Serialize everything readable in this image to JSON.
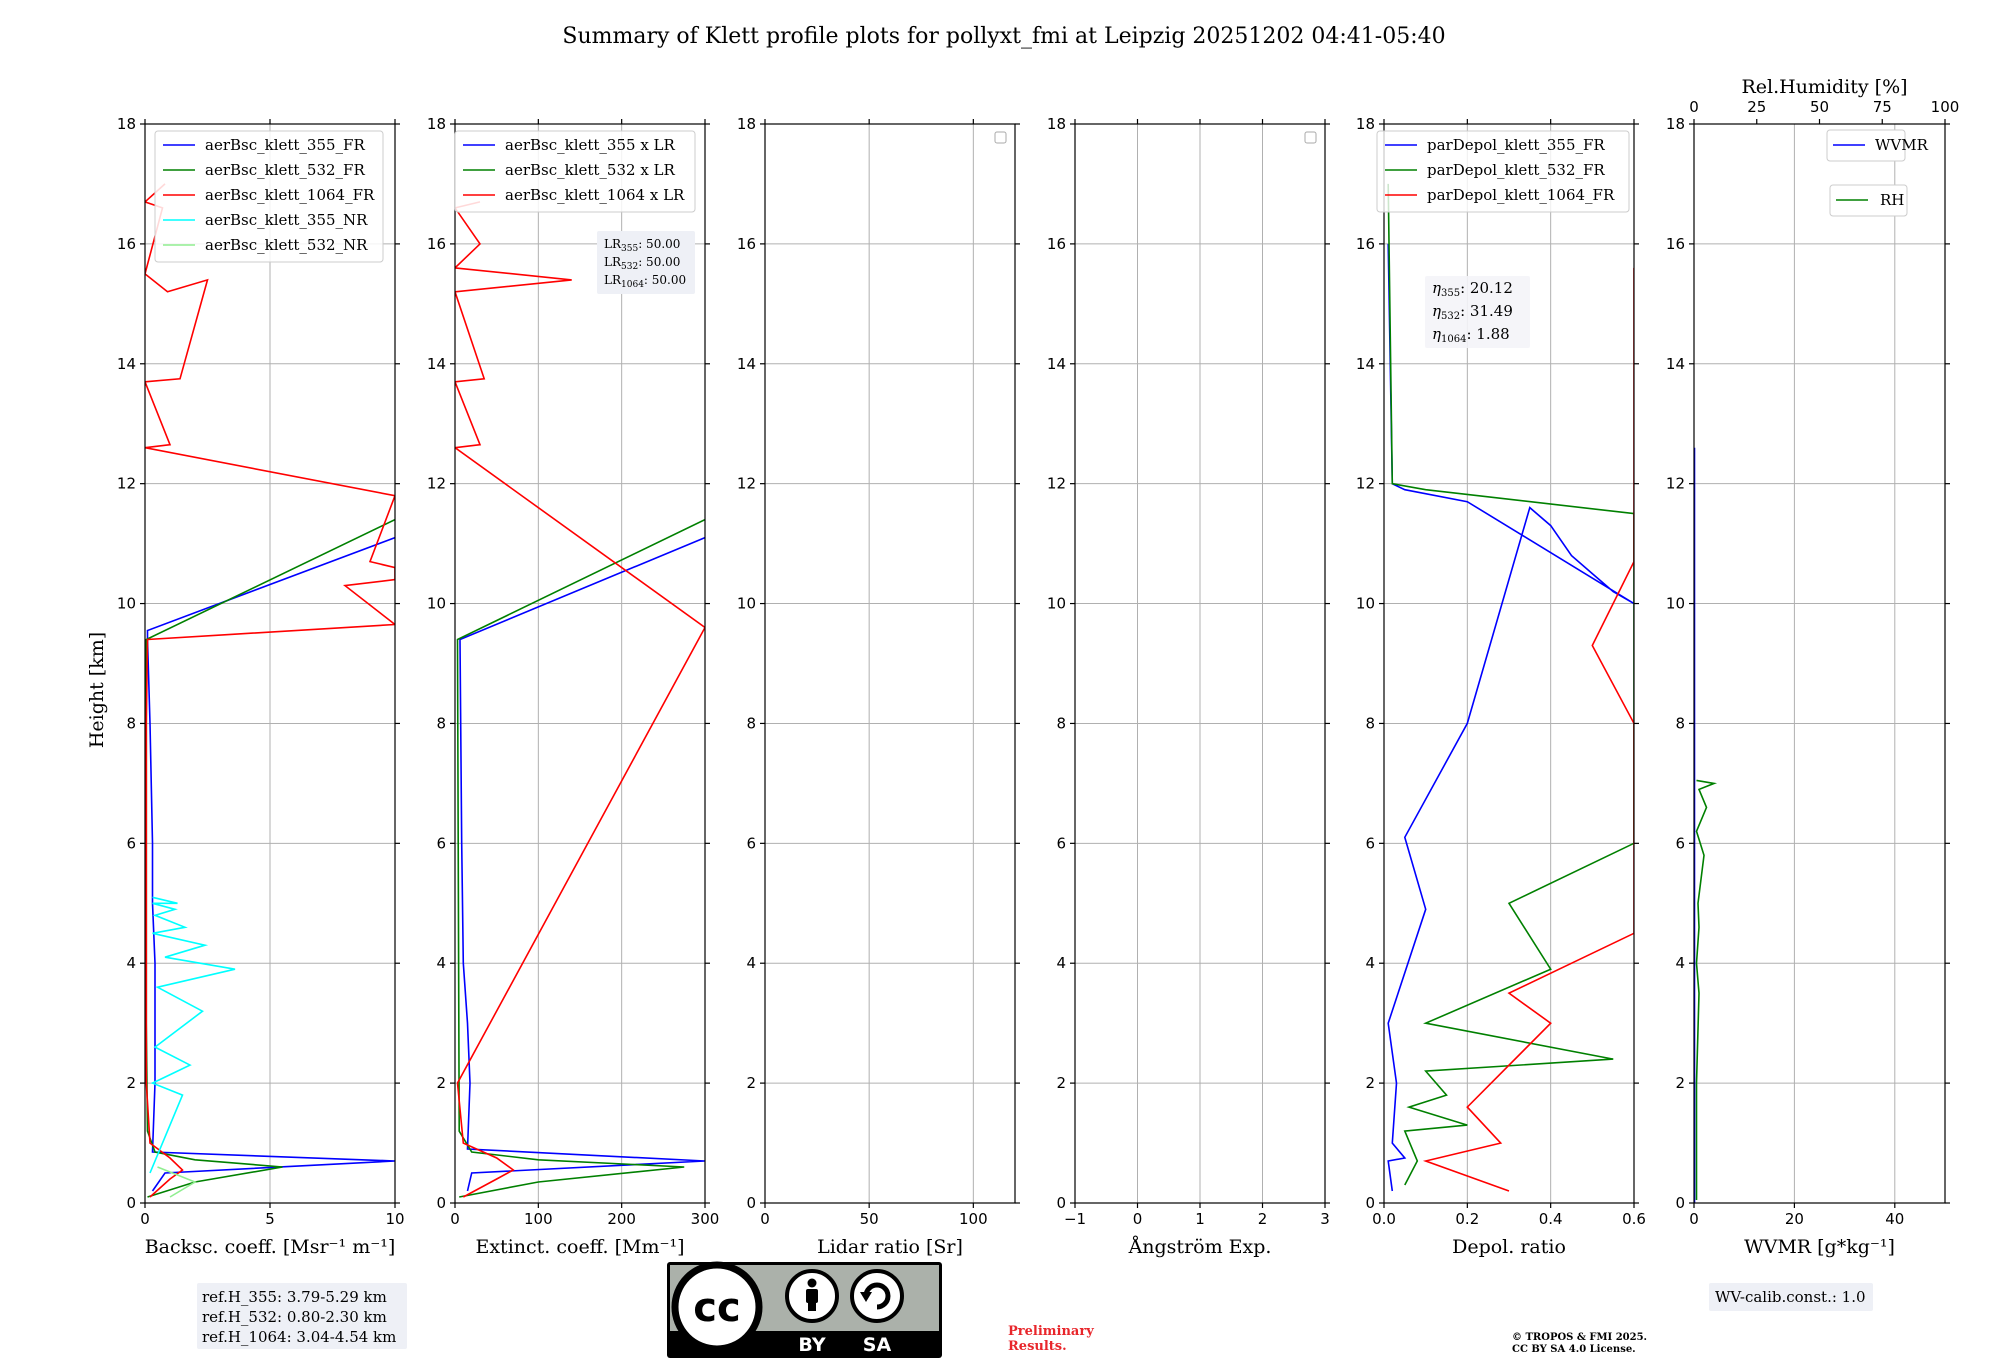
{
  "figure_title": "Summary of Klett profile plots for pollyxt_fmi at Leipzig 20251202 04:41-05:40",
  "y_axis_label": "Height [km]",
  "ref_heights": [
    "ref.H_355: 3.79-5.29 km",
    "ref.H_532: 0.80-2.30 km",
    "ref.H_1064: 3.04-4.54 km"
  ],
  "lidar_ratios": {
    "lr355_label": "LR",
    "lr355_sub": "355",
    "lr355_value": ": 50.00",
    "lr532_label": "LR",
    "lr532_sub": "532",
    "lr532_value": ": 50.00",
    "lr1064_label": "LR",
    "lr1064_sub": "1064",
    "lr1064_value": ": 50.00"
  },
  "eta": {
    "e355_sub": "355",
    "e355_value": ": 20.12",
    "e532_sub": "532",
    "e532_value": ": 31.49",
    "e1064_sub": "1064",
    "e1064_value": ": 1.88"
  },
  "wv_calib": "WV-calib.const.: 1.0",
  "license": {
    "by": "BY",
    "sa": "SA",
    "cc": "cc"
  },
  "preliminary": [
    "Preliminary",
    "Results."
  ],
  "copyright": [
    "© TROPOS & FMI 2025.",
    "CC BY SA 4.0 License."
  ],
  "colors": {
    "blue": "#0000ff",
    "green": "#008000",
    "red": "#ff0000",
    "cyan": "#00ffff",
    "lightgreen": "#90ee90",
    "grid": "#b0b0b0"
  },
  "chart_data": [
    {
      "type": "line",
      "title": "",
      "xlabel": "Backsc. coeff. [Msr⁻¹ m⁻¹]",
      "ylabel": "Height [km]",
      "xlim": [
        0,
        10
      ],
      "ylim": [
        0,
        18
      ],
      "xticks": [
        0,
        5,
        10
      ],
      "xtick_labels": [
        "0",
        "5",
        "10"
      ],
      "yticks": [
        0,
        2,
        4,
        6,
        8,
        10,
        12,
        14,
        16,
        18
      ],
      "ytick_labels": [
        "0",
        "2",
        "4",
        "6",
        "8",
        "10",
        "12",
        "14",
        "16",
        "18"
      ],
      "grid": true,
      "legend_position": "top-right",
      "series": [
        {
          "name": "aerBsc_klett_355_FR",
          "color": "#0000ff",
          "x": [
            0.3,
            0.8,
            10,
            0.3,
            0.4,
            0.4,
            0.3,
            0.3,
            0.2,
            0.1,
            0.1,
            10
          ],
          "y": [
            0.2,
            0.5,
            0.7,
            0.85,
            2,
            4,
            5,
            6,
            8,
            9.4,
            9.55,
            11.1
          ]
        },
        {
          "name": "aerBsc_klett_532_FR",
          "color": "#008000",
          "x": [
            0.1,
            2.0,
            5.5,
            2.0,
            0.4,
            0.1,
            0.05,
            0.05,
            0.05,
            10
          ],
          "y": [
            0.1,
            0.35,
            0.6,
            0.72,
            0.85,
            1.2,
            3,
            6,
            9.4,
            11.4
          ]
        },
        {
          "name": "aerBsc_klett_1064_FR",
          "color": "#ff0000",
          "x": [
            0.2,
            1.0,
            1.5,
            1.0,
            0.2,
            0.05,
            0.05,
            0.1,
            10,
            8,
            10,
            10,
            9,
            10,
            0,
            1,
            0,
            1.4,
            2.5,
            0.9,
            0,
            0.7,
            0,
            0.8
          ],
          "y": [
            0.1,
            0.4,
            0.55,
            0.75,
            1.0,
            2,
            8,
            9.4,
            9.65,
            10.3,
            10.4,
            10.6,
            10.7,
            11.8,
            12.6,
            12.65,
            13.7,
            13.75,
            15.4,
            15.2,
            15.5,
            16.6,
            16.7,
            17
          ]
        },
        {
          "name": "aerBsc_klett_355_NR",
          "color": "#00ffff",
          "x": [
            0.2,
            1.5,
            0.3,
            1.8,
            0.4,
            2.3,
            0.5,
            3.6,
            0.8,
            2.4,
            0.3,
            1.6,
            0.4,
            1.2,
            0.3,
            1.3,
            0.3
          ],
          "y": [
            0.5,
            1.8,
            2.0,
            2.3,
            2.6,
            3.2,
            3.6,
            3.9,
            4.1,
            4.3,
            4.5,
            4.6,
            4.8,
            4.9,
            5.0,
            5.0,
            5.1
          ]
        },
        {
          "name": "aerBsc_klett_532_NR",
          "color": "#90ee90",
          "x": [
            1.0,
            2.0,
            0.5
          ],
          "y": [
            0.1,
            0.35,
            0.6
          ]
        }
      ]
    },
    {
      "type": "line",
      "xlabel": "Extinct. coeff. [Mm⁻¹]",
      "xlim": [
        0,
        300
      ],
      "ylim": [
        0,
        18
      ],
      "xticks": [
        0,
        100,
        200,
        300
      ],
      "xtick_labels": [
        "0",
        "100",
        "200",
        "300"
      ],
      "yticks": [
        0,
        2,
        4,
        6,
        8,
        10,
        12,
        14,
        16,
        18
      ],
      "ytick_labels": [
        "0",
        "2",
        "4",
        "6",
        "8",
        "10",
        "12",
        "14",
        "16",
        "18"
      ],
      "grid": true,
      "legend_position": "top-right",
      "series": [
        {
          "name": "aerBsc_klett_355 x LR",
          "color": "#0000ff",
          "x": [
            15,
            20,
            300,
            15,
            18,
            15,
            10,
            8,
            6,
            300
          ],
          "y": [
            0.2,
            0.5,
            0.7,
            0.9,
            2,
            3,
            4,
            6,
            9.4,
            11.1
          ]
        },
        {
          "name": "aerBsc_klett_532 x LR",
          "color": "#008000",
          "x": [
            5,
            100,
            275,
            100,
            20,
            5,
            3,
            300
          ],
          "y": [
            0.1,
            0.35,
            0.6,
            0.72,
            0.85,
            1.2,
            9.4,
            11.4
          ]
        },
        {
          "name": "aerBsc_klett_1064 x LR",
          "color": "#ff0000",
          "x": [
            10,
            50,
            70,
            50,
            10,
            3,
            300,
            0,
            30,
            0,
            35,
            0,
            140,
            0,
            30,
            0,
            30
          ],
          "y": [
            0.1,
            0.4,
            0.55,
            0.75,
            1.0,
            2,
            9.6,
            12.6,
            12.65,
            13.7,
            13.75,
            15.2,
            15.4,
            15.6,
            16.0,
            16.6,
            16.7
          ]
        }
      ]
    },
    {
      "type": "line",
      "xlabel": "Lidar ratio [Sr]",
      "xlim": [
        0,
        120
      ],
      "ylim": [
        0,
        18
      ],
      "xticks": [
        0,
        50,
        100
      ],
      "xtick_labels": [
        "0",
        "50",
        "100"
      ],
      "yticks": [
        0,
        2,
        4,
        6,
        8,
        10,
        12,
        14,
        16,
        18
      ],
      "ytick_labels": [
        "0",
        "2",
        "4",
        "6",
        "8",
        "10",
        "12",
        "14",
        "16",
        "18"
      ],
      "grid": true,
      "legend_position": "top-right",
      "series": []
    },
    {
      "type": "line",
      "xlabel": "Ångström Exp.",
      "xlim": [
        -1,
        3
      ],
      "ylim": [
        0,
        18
      ],
      "xticks": [
        -1,
        0,
        1,
        2,
        3
      ],
      "xtick_labels": [
        "−1",
        "0",
        "1",
        "2",
        "3"
      ],
      "yticks": [
        0,
        2,
        4,
        6,
        8,
        10,
        12,
        14,
        16,
        18
      ],
      "ytick_labels": [
        "0",
        "2",
        "4",
        "6",
        "8",
        "10",
        "12",
        "14",
        "16",
        "18"
      ],
      "grid": true,
      "legend_position": "top-right",
      "series": []
    },
    {
      "type": "line",
      "xlabel": "Depol. ratio",
      "xlim": [
        0,
        0.6
      ],
      "ylim": [
        0,
        18
      ],
      "xticks": [
        0,
        0.2,
        0.4,
        0.6
      ],
      "xtick_labels": [
        "0.0",
        "0.2",
        "0.4",
        "0.6"
      ],
      "yticks": [
        0,
        2,
        4,
        6,
        8,
        10,
        12,
        14,
        16,
        18
      ],
      "ytick_labels": [
        "0",
        "2",
        "4",
        "6",
        "8",
        "10",
        "12",
        "14",
        "16",
        "18"
      ],
      "grid": true,
      "legend_position": "top-left",
      "series": [
        {
          "name": "parDepol_klett_355_FR",
          "color": "#0000ff",
          "x": [
            0.02,
            0.01,
            0.05,
            0.02,
            0.03,
            0.01,
            0.1,
            0.05,
            0.2,
            0.35,
            0.4,
            0.45,
            0.5,
            0.55,
            0.6,
            0.2,
            0.05,
            0.02,
            0.01
          ],
          "y": [
            0.2,
            0.7,
            0.75,
            1.0,
            2,
            3,
            4.9,
            6.1,
            8.0,
            11.6,
            11.3,
            10.8,
            10.5,
            10.2,
            10.0,
            11.7,
            11.9,
            12,
            16
          ]
        },
        {
          "name": "parDepol_klett_532_FR",
          "color": "#008000",
          "x": [
            0.05,
            0.08,
            0.05,
            0.2,
            0.06,
            0.15,
            0.1,
            0.55,
            0.1,
            0.4,
            0.3,
            0.6,
            0.6,
            0.1,
            0.02,
            0.01
          ],
          "y": [
            0.3,
            0.7,
            1.2,
            1.3,
            1.6,
            1.8,
            2.2,
            2.4,
            3.0,
            3.9,
            5.0,
            6.0,
            11.5,
            11.9,
            12,
            17
          ]
        },
        {
          "name": "parDepol_klett_1064_FR",
          "color": "#ff0000",
          "x": [
            0.3,
            0.1,
            0.28,
            0.2,
            0.4,
            0.3,
            0.6,
            0.6,
            0.5,
            0.6,
            0.6,
            0.6,
            0.6,
            0.6
          ],
          "y": [
            0.2,
            0.7,
            1.0,
            1.6,
            3.0,
            3.5,
            4.5,
            8.0,
            9.3,
            10.7,
            11.8,
            12.6,
            14.1,
            15.6
          ]
        }
      ]
    },
    {
      "type": "line",
      "xlabel": "WVMR [g*kg⁻¹]",
      "top_xlabel": "Rel.Humidity [%]",
      "xlim": [
        0,
        50
      ],
      "ylim": [
        0,
        18
      ],
      "xticks": [
        0,
        20,
        40
      ],
      "xtick_labels": [
        "0",
        "20",
        "40"
      ],
      "top_xticks": [
        0,
        25,
        50,
        75,
        100
      ],
      "top_xtick_labels": [
        "0",
        "25",
        "50",
        "75",
        "100"
      ],
      "yticks": [
        0,
        2,
        4,
        6,
        8,
        10,
        12,
        14,
        16,
        18
      ],
      "ytick_labels": [
        "0",
        "2",
        "4",
        "6",
        "8",
        "10",
        "12",
        "14",
        "16",
        "18"
      ],
      "grid": true,
      "legend_position": "top-right",
      "series": [
        {
          "name": "WVMR",
          "color": "#0000ff",
          "x": [
            0.1,
            0.1
          ],
          "y": [
            0,
            12.6
          ]
        },
        {
          "name": "RH",
          "color": "#008000",
          "x": [
            0.5,
            0.5,
            1,
            0.5,
            1,
            0.8,
            2,
            0.5,
            2.5,
            1,
            4,
            0.5
          ],
          "y": [
            0.05,
            2.0,
            3.5,
            4.0,
            4.6,
            5.0,
            5.8,
            6.2,
            6.6,
            6.9,
            7.0,
            7.05
          ]
        }
      ]
    }
  ]
}
